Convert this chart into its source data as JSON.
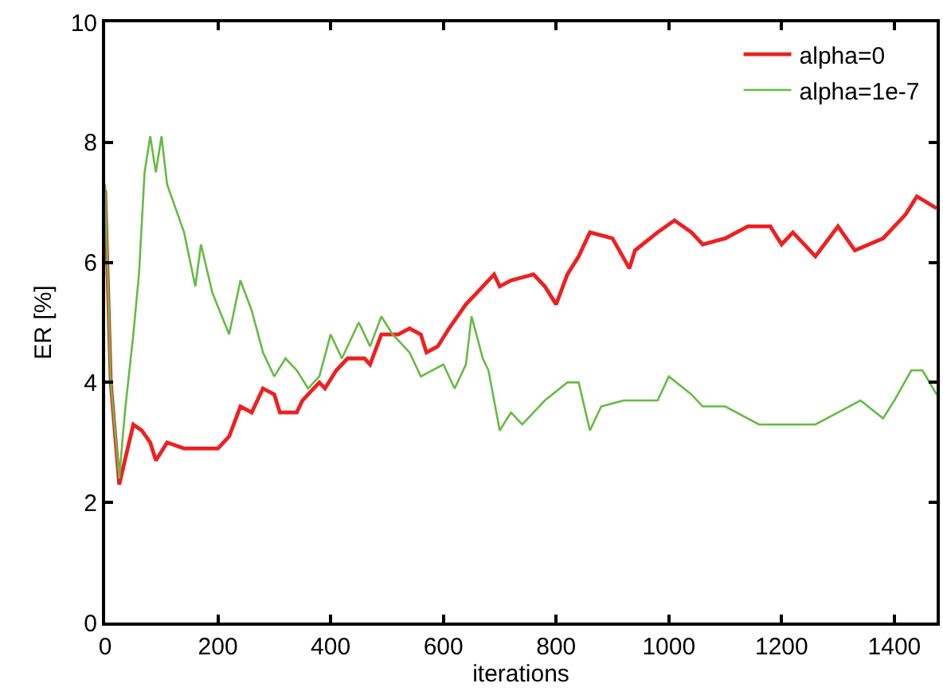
{
  "chart_data": {
    "type": "line",
    "xlabel": "iterations",
    "ylabel": "ER [%]",
    "xlim": [
      0,
      1475
    ],
    "xticks": [
      0,
      200,
      400,
      600,
      800,
      1000,
      1200,
      1400
    ],
    "ylim": [
      0,
      10
    ],
    "yticks": [
      0,
      2,
      4,
      6,
      8,
      10
    ],
    "legend": "top right",
    "marker": "none",
    "line_style": "solid",
    "series": [
      {
        "name": "alpha=0",
        "color": "#ee2020",
        "x": [
          0,
          10,
          25,
          35,
          50,
          65,
          80,
          90,
          110,
          140,
          200,
          220,
          240,
          260,
          280,
          300,
          310,
          340,
          350,
          380,
          390,
          410,
          430,
          460,
          470,
          490,
          520,
          540,
          560,
          570,
          590,
          610,
          640,
          660,
          690,
          700,
          720,
          760,
          780,
          800,
          820,
          840,
          860,
          900,
          930,
          940,
          980,
          1010,
          1040,
          1060,
          1100,
          1140,
          1180,
          1200,
          1220,
          1260,
          1300,
          1330,
          1380,
          1420,
          1440,
          1475
        ],
        "values": [
          7.2,
          4.0,
          2.3,
          2.7,
          3.3,
          3.2,
          3.0,
          2.7,
          3.0,
          2.9,
          2.9,
          3.1,
          3.6,
          3.5,
          3.9,
          3.8,
          3.5,
          3.5,
          3.7,
          4.0,
          3.9,
          4.2,
          4.4,
          4.4,
          4.3,
          4.8,
          4.8,
          4.9,
          4.8,
          4.5,
          4.6,
          4.9,
          5.3,
          5.5,
          5.8,
          5.6,
          5.7,
          5.8,
          5.6,
          5.3,
          5.8,
          6.1,
          6.5,
          6.4,
          5.9,
          6.2,
          6.5,
          6.7,
          6.5,
          6.3,
          6.4,
          6.6,
          6.6,
          6.3,
          6.5,
          6.1,
          6.6,
          6.2,
          6.4,
          6.8,
          7.1,
          6.9
        ]
      },
      {
        "name": "alpha=1e-7",
        "color": "#66bb44",
        "x": [
          0,
          10,
          25,
          35,
          50,
          60,
          70,
          80,
          90,
          100,
          110,
          140,
          160,
          170,
          190,
          220,
          240,
          260,
          280,
          300,
          320,
          340,
          360,
          380,
          400,
          420,
          450,
          470,
          490,
          510,
          540,
          560,
          600,
          620,
          640,
          650,
          670,
          680,
          700,
          720,
          740,
          780,
          820,
          840,
          860,
          880,
          920,
          980,
          1000,
          1040,
          1060,
          1100,
          1160,
          1200,
          1260,
          1300,
          1340,
          1380,
          1400,
          1430,
          1450,
          1475
        ],
        "values": [
          7.3,
          4.0,
          2.4,
          3.5,
          4.8,
          5.8,
          7.5,
          8.1,
          7.5,
          8.1,
          7.3,
          6.5,
          5.6,
          6.3,
          5.5,
          4.8,
          5.7,
          5.2,
          4.5,
          4.1,
          4.4,
          4.2,
          3.9,
          4.1,
          4.8,
          4.4,
          5.0,
          4.6,
          5.1,
          4.8,
          4.5,
          4.1,
          4.3,
          3.9,
          4.3,
          5.1,
          4.4,
          4.2,
          3.2,
          3.5,
          3.3,
          3.7,
          4.0,
          4.0,
          3.2,
          3.6,
          3.7,
          3.7,
          4.1,
          3.8,
          3.6,
          3.6,
          3.3,
          3.3,
          3.3,
          3.5,
          3.7,
          3.4,
          3.7,
          4.2,
          4.2,
          3.8
        ]
      }
    ]
  }
}
